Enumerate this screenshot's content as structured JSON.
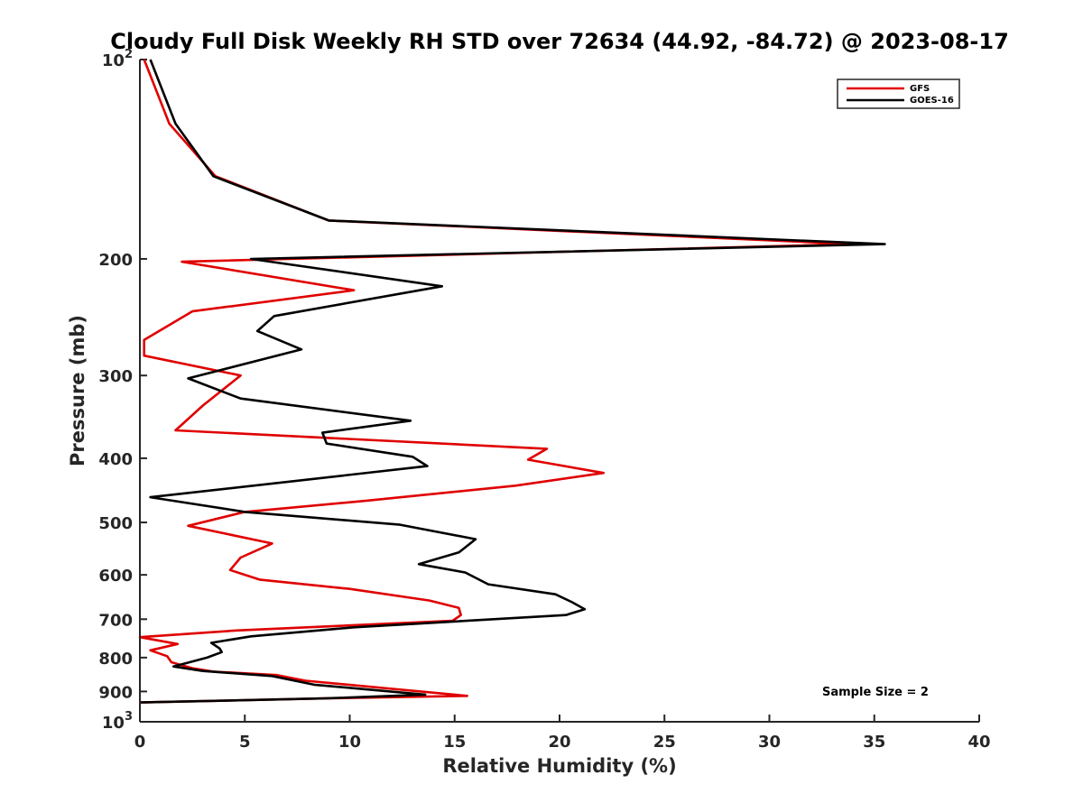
{
  "chart_data": {
    "type": "line",
    "title": "Cloudy Full Disk Weekly RH STD over 72634 (44.92, -84.72) @ 2023-08-17",
    "xlabel": "Relative Humidity (%)",
    "ylabel": "Pressure (mb)",
    "xlim": [
      0,
      40
    ],
    "ylim": [
      100,
      1000
    ],
    "y_scale": "log",
    "y_reversed": true,
    "x_ticks": [
      "0",
      "5",
      "10",
      "15",
      "20",
      "25",
      "30",
      "35",
      "40"
    ],
    "y_ticks": [
      {
        "value": 100,
        "base": "10",
        "exp": "2"
      },
      {
        "value": 200,
        "label": "200"
      },
      {
        "value": 300,
        "label": "300"
      },
      {
        "value": 400,
        "label": "400"
      },
      {
        "value": 500,
        "label": "500"
      },
      {
        "value": 600,
        "label": "600"
      },
      {
        "value": 700,
        "label": "700"
      },
      {
        "value": 800,
        "label": "800"
      },
      {
        "value": 900,
        "label": "900"
      },
      {
        "value": 1000,
        "base": "10",
        "exp": "3"
      }
    ],
    "grid": false,
    "legend_position": "top-right",
    "annotation": "Sample Size = 2",
    "series": [
      {
        "name": "GFS",
        "color": "#e00000",
        "points": [
          [
            0.2,
            100
          ],
          [
            1.4,
            125
          ],
          [
            3.6,
            150
          ],
          [
            9.0,
            175
          ],
          [
            34.0,
            190
          ],
          [
            2.0,
            202
          ],
          [
            10.2,
            223
          ],
          [
            2.5,
            240
          ],
          [
            0.2,
            265
          ],
          [
            0.2,
            280
          ],
          [
            4.8,
            300
          ],
          [
            3.0,
            333
          ],
          [
            1.7,
            363
          ],
          [
            19.4,
            387
          ],
          [
            18.5,
            402
          ],
          [
            22.1,
            421
          ],
          [
            17.9,
            440
          ],
          [
            10.7,
            464
          ],
          [
            5.0,
            482
          ],
          [
            2.3,
            506
          ],
          [
            6.3,
            538
          ],
          [
            4.8,
            565
          ],
          [
            4.3,
            590
          ],
          [
            5.7,
            610
          ],
          [
            10.0,
            630
          ],
          [
            13.8,
            656
          ],
          [
            15.2,
            673
          ],
          [
            15.3,
            690
          ],
          [
            14.9,
            704
          ],
          [
            4.6,
            728
          ],
          [
            0.0,
            745
          ],
          [
            1.8,
            763
          ],
          [
            0.5,
            780
          ],
          [
            1.3,
            796
          ],
          [
            1.5,
            813
          ],
          [
            2.5,
            830
          ],
          [
            3.5,
            840
          ],
          [
            6.5,
            850
          ],
          [
            7.9,
            867
          ],
          [
            15.6,
            914
          ],
          [
            8.8,
            922
          ],
          [
            0.0,
            935
          ]
        ]
      },
      {
        "name": "GOES-16",
        "color": "#000000",
        "points": [
          [
            0.5,
            100
          ],
          [
            1.7,
            125
          ],
          [
            3.5,
            150
          ],
          [
            9.0,
            175
          ],
          [
            35.5,
            190
          ],
          [
            5.3,
            200
          ],
          [
            14.4,
            220
          ],
          [
            6.4,
            244
          ],
          [
            5.6,
            257
          ],
          [
            7.7,
            274
          ],
          [
            2.3,
            303
          ],
          [
            4.8,
            325
          ],
          [
            12.9,
            351
          ],
          [
            8.7,
            366
          ],
          [
            8.9,
            380
          ],
          [
            13.0,
            398
          ],
          [
            13.7,
            411
          ],
          [
            0.5,
            458
          ],
          [
            5.0,
            482
          ],
          [
            12.4,
            504
          ],
          [
            16.0,
            530
          ],
          [
            15.2,
            555
          ],
          [
            13.3,
            578
          ],
          [
            15.5,
            595
          ],
          [
            16.6,
            620
          ],
          [
            19.8,
            642
          ],
          [
            20.6,
            660
          ],
          [
            21.2,
            676
          ],
          [
            20.3,
            690
          ],
          [
            10.2,
            720
          ],
          [
            5.3,
            743
          ],
          [
            3.4,
            760
          ],
          [
            3.8,
            775
          ],
          [
            3.9,
            785
          ],
          [
            3.2,
            800
          ],
          [
            1.6,
            825
          ],
          [
            3.0,
            838
          ],
          [
            6.3,
            853
          ],
          [
            8.3,
            879
          ],
          [
            13.6,
            910
          ],
          [
            8.8,
            922
          ],
          [
            0.0,
            935
          ]
        ]
      }
    ]
  }
}
